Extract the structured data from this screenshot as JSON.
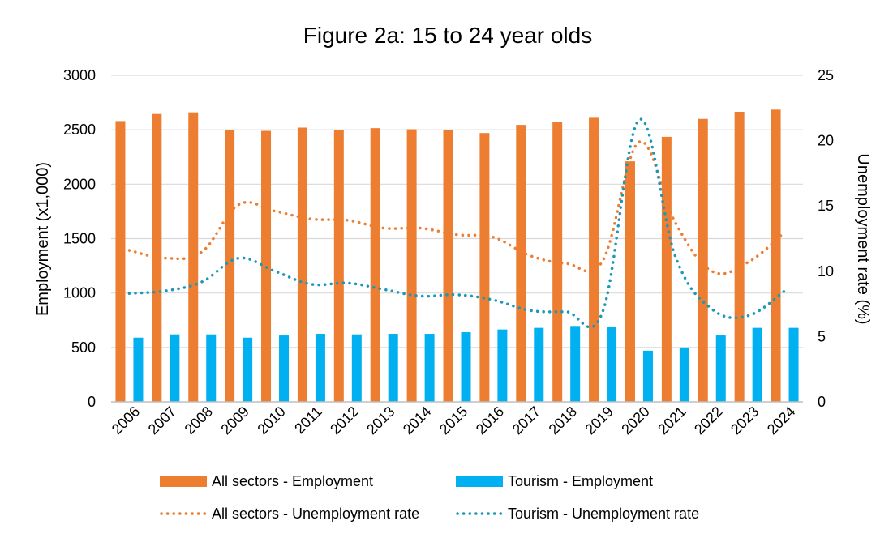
{
  "chart_data": {
    "type": "bar",
    "title": "Figure 2a: 15 to 24 year olds",
    "xlabel": "",
    "ylabel": "Employment (x1,000)",
    "y2label": "Unemployment rate (%)",
    "ylim": [
      0,
      3000
    ],
    "y2lim": [
      0,
      25
    ],
    "yticks": [
      0,
      500,
      1000,
      1500,
      2000,
      2500,
      3000
    ],
    "y2ticks": [
      0,
      5,
      10,
      15,
      20,
      25
    ],
    "grid": true,
    "legend_position": "bottom",
    "categories": [
      "2006",
      "2007",
      "2008",
      "2009",
      "2010",
      "2011",
      "2012",
      "2013",
      "2014",
      "2015",
      "2016",
      "2017",
      "2018",
      "2019",
      "2020",
      "2021",
      "2022",
      "2023",
      "2024"
    ],
    "series": [
      {
        "name": "All sectors - Employment",
        "kind": "bar",
        "axis": "left",
        "color": "#ED7D31",
        "values": [
          2580,
          2645,
          2660,
          2500,
          2490,
          2520,
          2500,
          2515,
          2505,
          2500,
          2470,
          2545,
          2575,
          2610,
          2210,
          2435,
          2600,
          2665,
          2685
        ]
      },
      {
        "name": "Tourism - Employment",
        "kind": "bar",
        "axis": "left",
        "color": "#00B0F0",
        "values": [
          590,
          620,
          620,
          590,
          610,
          625,
          620,
          625,
          625,
          640,
          665,
          680,
          690,
          685,
          470,
          500,
          610,
          680,
          680
        ]
      },
      {
        "name": "All sectors - Unemployment rate",
        "kind": "line",
        "axis": "right",
        "color": "#ED7D31",
        "values": [
          11.6,
          11.0,
          11.5,
          15.1,
          14.6,
          14.0,
          13.9,
          13.3,
          13.3,
          12.8,
          12.6,
          11.2,
          10.6,
          10.8,
          19.9,
          13.7,
          10.0,
          10.7,
          13.0
        ]
      },
      {
        "name": "Tourism - Unemployment rate",
        "kind": "line",
        "axis": "right",
        "color": "#1B98B8",
        "values": [
          8.3,
          8.5,
          9.2,
          11.0,
          10.0,
          9.0,
          9.1,
          8.6,
          8.1,
          8.2,
          7.8,
          7.0,
          6.9,
          6.9,
          21.6,
          11.1,
          7.1,
          6.6,
          8.5
        ]
      }
    ]
  }
}
